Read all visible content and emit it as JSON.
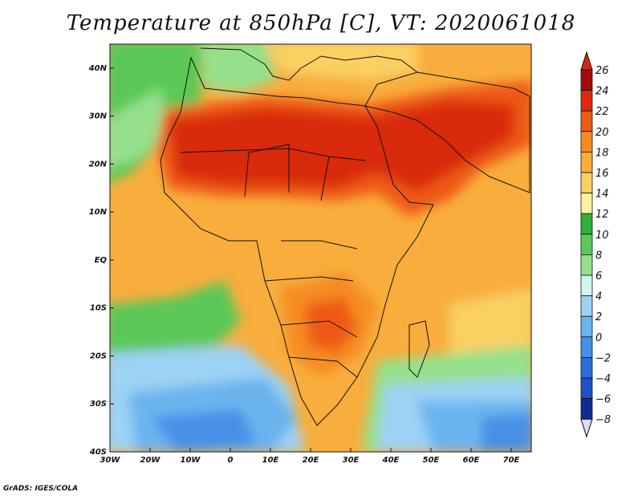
{
  "title": "Temperature at 850hPa [C], VT: 2020061018",
  "map": {
    "lat_labels": [
      "40N",
      "30N",
      "20N",
      "10N",
      "EQ",
      "10S",
      "20S",
      "30S",
      "40S"
    ],
    "lon_labels": [
      "30W",
      "20W",
      "10W",
      "0",
      "10E",
      "20E",
      "30E",
      "40E",
      "50E",
      "60E",
      "70E"
    ],
    "extent": {
      "lon_min": -30,
      "lon_max": 75,
      "lat_min": -40,
      "lat_max": 45
    }
  },
  "colorbar": {
    "labels": [
      "26",
      "24",
      "22",
      "20",
      "18",
      "16",
      "14",
      "12",
      "10",
      "8",
      "6",
      "4",
      "2",
      "0",
      "−2",
      "−4",
      "−6",
      "−8"
    ],
    "colors": [
      "#a50a0a",
      "#e0280f",
      "#ee5a18",
      "#f58c22",
      "#f8ad3c",
      "#fad064",
      "#fdf2a0",
      "#30b03c",
      "#5cc858",
      "#96e08c",
      "#d2f6ec",
      "#9cd2f4",
      "#6ab4ee",
      "#4690e6",
      "#2c6ed8",
      "#1e52c6",
      "#0e2c92"
    ]
  },
  "credit": "GrADS: IGES/COLA"
}
